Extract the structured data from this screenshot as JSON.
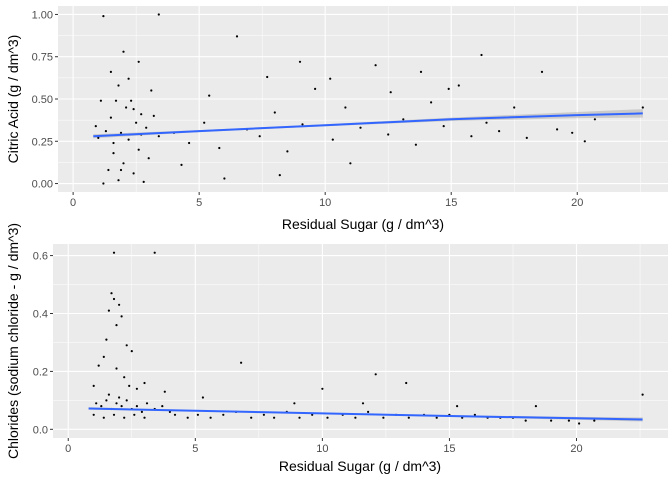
{
  "chart_data": [
    {
      "type": "scatter",
      "title": "",
      "xlabel": "Residual Sugar (g / dm^3)",
      "ylabel": "Citric Acid (g / dm^3)",
      "xlim": [
        -0.6,
        23.6
      ],
      "ylim": [
        -0.05,
        1.05
      ],
      "x_ticks": [
        0,
        5,
        10,
        15,
        20
      ],
      "x_tick_labels": [
        "0",
        "5",
        "10",
        "15",
        "20"
      ],
      "y_ticks": [
        0,
        0.25,
        0.5,
        0.75,
        1
      ],
      "y_tick_labels": [
        "0.00",
        "0.25",
        "0.50",
        "0.75",
        "1.00"
      ],
      "grid": true,
      "point_color": "#000000",
      "trend_color": "#3366FF",
      "band_color": "#999999",
      "trend": [
        [
          0.8,
          0.28
        ],
        [
          5,
          0.31
        ],
        [
          10,
          0.345
        ],
        [
          15,
          0.38
        ],
        [
          20,
          0.405
        ],
        [
          22.6,
          0.415
        ]
      ],
      "band_halfwidth": [
        [
          0.8,
          0.012
        ],
        [
          5,
          0.006
        ],
        [
          10,
          0.006
        ],
        [
          15,
          0.01
        ],
        [
          20,
          0.018
        ],
        [
          22.6,
          0.025
        ]
      ],
      "points": [
        [
          0.9,
          0.34
        ],
        [
          1.0,
          0.27
        ],
        [
          1.1,
          0.49
        ],
        [
          1.2,
          0.0
        ],
        [
          1.3,
          0.31
        ],
        [
          1.4,
          0.08
        ],
        [
          1.5,
          0.39
        ],
        [
          1.6,
          0.24
        ],
        [
          1.7,
          0.49
        ],
        [
          1.8,
          0.02
        ],
        [
          1.9,
          0.3
        ],
        [
          2.0,
          0.12
        ],
        [
          2.1,
          0.45
        ],
        [
          2.2,
          0.26
        ],
        [
          2.3,
          0.49
        ],
        [
          2.4,
          0.06
        ],
        [
          2.5,
          0.36
        ],
        [
          2.6,
          0.2
        ],
        [
          2.7,
          0.41
        ],
        [
          2.8,
          0.01
        ],
        [
          2.9,
          0.33
        ],
        [
          3.0,
          0.15
        ],
        [
          3.2,
          0.4
        ],
        [
          3.4,
          0.28
        ],
        [
          1.2,
          0.99
        ],
        [
          3.4,
          1.0
        ],
        [
          1.5,
          0.66
        ],
        [
          2.0,
          0.78
        ],
        [
          2.6,
          0.72
        ],
        [
          1.8,
          0.58
        ],
        [
          2.2,
          0.62
        ],
        [
          3.1,
          0.55
        ],
        [
          1.6,
          0.18
        ],
        [
          2.4,
          0.44
        ],
        [
          1.9,
          0.08
        ],
        [
          2.7,
          0.29
        ],
        [
          4.0,
          0.3
        ],
        [
          4.6,
          0.24
        ],
        [
          5.2,
          0.36
        ],
        [
          5.8,
          0.21
        ],
        [
          6.5,
          0.87
        ],
        [
          6.9,
          0.32
        ],
        [
          7.4,
          0.28
        ],
        [
          8.0,
          0.42
        ],
        [
          8.5,
          0.19
        ],
        [
          9.1,
          0.35
        ],
        [
          9.6,
          0.56
        ],
        [
          10.3,
          0.26
        ],
        [
          10.8,
          0.45
        ],
        [
          11.4,
          0.33
        ],
        [
          12.0,
          0.7
        ],
        [
          12.5,
          0.29
        ],
        [
          13.1,
          0.38
        ],
        [
          13.6,
          0.23
        ],
        [
          14.2,
          0.48
        ],
        [
          14.7,
          0.34
        ],
        [
          15.3,
          0.58
        ],
        [
          15.8,
          0.28
        ],
        [
          16.4,
          0.36
        ],
        [
          16.9,
          0.31
        ],
        [
          17.5,
          0.45
        ],
        [
          18.0,
          0.27
        ],
        [
          18.6,
          0.66
        ],
        [
          19.2,
          0.32
        ],
        [
          19.8,
          0.3
        ],
        [
          20.3,
          0.25
        ],
        [
          20.7,
          0.38
        ],
        [
          22.6,
          0.45
        ],
        [
          6.0,
          0.03
        ],
        [
          8.2,
          0.05
        ],
        [
          11.0,
          0.12
        ],
        [
          7.7,
          0.63
        ],
        [
          13.8,
          0.66
        ],
        [
          16.2,
          0.76
        ],
        [
          10.2,
          0.62
        ],
        [
          12.6,
          0.54
        ],
        [
          14.9,
          0.56
        ],
        [
          9.0,
          0.72
        ],
        [
          5.4,
          0.52
        ],
        [
          4.3,
          0.11
        ]
      ]
    },
    {
      "type": "scatter",
      "title": "",
      "xlabel": "Residual Sugar (g / dm^3)",
      "ylabel": "Chlorides (sodium chloride - g / dm^3)",
      "xlim": [
        -0.6,
        23.6
      ],
      "ylim": [
        -0.03,
        0.64
      ],
      "x_ticks": [
        0,
        5,
        10,
        15,
        20
      ],
      "x_tick_labels": [
        "0",
        "5",
        "10",
        "15",
        "20"
      ],
      "y_ticks": [
        0,
        0.2,
        0.4,
        0.6
      ],
      "y_tick_labels": [
        "0.0",
        "0.2",
        "0.4",
        "0.6"
      ],
      "grid": true,
      "point_color": "#000000",
      "trend_color": "#3366FF",
      "band_color": "#999999",
      "trend": [
        [
          0.8,
          0.072
        ],
        [
          5,
          0.064
        ],
        [
          10,
          0.055
        ],
        [
          15,
          0.046
        ],
        [
          20,
          0.038
        ],
        [
          22.6,
          0.034
        ]
      ],
      "band_halfwidth": [
        [
          0.8,
          0.004
        ],
        [
          5,
          0.002
        ],
        [
          10,
          0.002
        ],
        [
          15,
          0.003
        ],
        [
          20,
          0.005
        ],
        [
          22.6,
          0.007
        ]
      ],
      "points": [
        [
          1.8,
          0.61
        ],
        [
          3.4,
          0.61
        ],
        [
          1.7,
          0.47
        ],
        [
          1.8,
          0.45
        ],
        [
          2.0,
          0.43
        ],
        [
          1.6,
          0.41
        ],
        [
          2.1,
          0.39
        ],
        [
          1.9,
          0.36
        ],
        [
          1.5,
          0.31
        ],
        [
          2.3,
          0.29
        ],
        [
          1.4,
          0.25
        ],
        [
          2.5,
          0.27
        ],
        [
          1.2,
          0.22
        ],
        [
          1.9,
          0.21
        ],
        [
          2.2,
          0.18
        ],
        [
          1.0,
          0.15
        ],
        [
          2.7,
          0.14
        ],
        [
          3.0,
          0.16
        ],
        [
          1.6,
          0.12
        ],
        [
          2.0,
          0.11
        ],
        [
          1.1,
          0.09
        ],
        [
          1.3,
          0.08
        ],
        [
          1.5,
          0.1
        ],
        [
          1.7,
          0.07
        ],
        [
          1.9,
          0.09
        ],
        [
          2.1,
          0.08
        ],
        [
          2.3,
          0.1
        ],
        [
          2.5,
          0.07
        ],
        [
          2.7,
          0.08
        ],
        [
          2.9,
          0.06
        ],
        [
          3.1,
          0.09
        ],
        [
          3.4,
          0.07
        ],
        [
          3.7,
          0.08
        ],
        [
          4.0,
          0.06
        ],
        [
          1.0,
          0.05
        ],
        [
          1.4,
          0.04
        ],
        [
          1.8,
          0.05
        ],
        [
          2.2,
          0.04
        ],
        [
          2.6,
          0.05
        ],
        [
          3.0,
          0.04
        ],
        [
          4.2,
          0.05
        ],
        [
          4.7,
          0.04
        ],
        [
          5.1,
          0.05
        ],
        [
          5.6,
          0.04
        ],
        [
          6.1,
          0.05
        ],
        [
          6.6,
          0.06
        ],
        [
          6.8,
          0.23
        ],
        [
          7.2,
          0.04
        ],
        [
          7.7,
          0.05
        ],
        [
          8.1,
          0.04
        ],
        [
          8.6,
          0.06
        ],
        [
          9.1,
          0.04
        ],
        [
          9.6,
          0.05
        ],
        [
          10.0,
          0.14
        ],
        [
          10.2,
          0.04
        ],
        [
          10.8,
          0.05
        ],
        [
          11.3,
          0.04
        ],
        [
          11.8,
          0.06
        ],
        [
          12.1,
          0.19
        ],
        [
          12.4,
          0.04
        ],
        [
          12.9,
          0.05
        ],
        [
          13.3,
          0.16
        ],
        [
          13.4,
          0.04
        ],
        [
          14.0,
          0.05
        ],
        [
          14.5,
          0.04
        ],
        [
          15.0,
          0.05
        ],
        [
          15.5,
          0.04
        ],
        [
          16.0,
          0.05
        ],
        [
          16.5,
          0.04
        ],
        [
          17.0,
          0.04
        ],
        [
          17.5,
          0.04
        ],
        [
          18.0,
          0.03
        ],
        [
          18.4,
          0.08
        ],
        [
          19.0,
          0.03
        ],
        [
          19.7,
          0.03
        ],
        [
          20.1,
          0.02
        ],
        [
          20.7,
          0.03
        ],
        [
          22.6,
          0.12
        ],
        [
          15.3,
          0.08
        ],
        [
          11.6,
          0.09
        ],
        [
          8.9,
          0.09
        ],
        [
          5.3,
          0.11
        ],
        [
          3.8,
          0.13
        ],
        [
          2.4,
          0.15
        ]
      ]
    }
  ]
}
